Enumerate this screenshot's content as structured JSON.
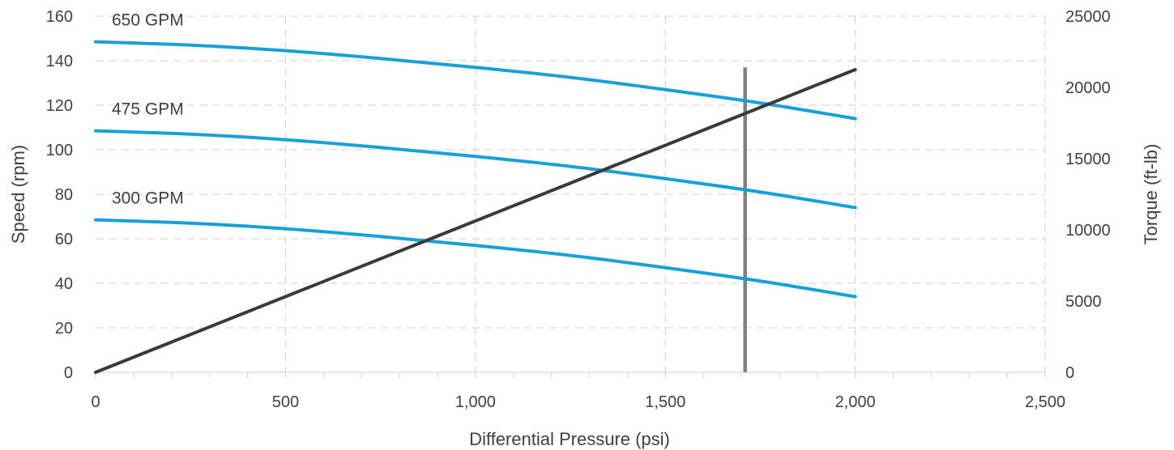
{
  "chart_data": {
    "type": "line",
    "title": "",
    "xlabel": "Differential Pressure (psi)",
    "ylabel": "Speed (rpm)",
    "y2label": "Torque (ft-lb)",
    "xlim": [
      0,
      2500
    ],
    "ylim": [
      0,
      160
    ],
    "y2lim": [
      0,
      25000
    ],
    "x_ticks": [
      0,
      500,
      1000,
      1500,
      2000,
      2500
    ],
    "x_tick_labels": [
      "0",
      "500",
      "1,000",
      "1,500",
      "2,000",
      "2,500"
    ],
    "y_ticks": [
      0,
      20,
      40,
      60,
      80,
      100,
      120,
      140,
      160
    ],
    "y_tick_labels": [
      "0",
      "20",
      "40",
      "60",
      "80",
      "100",
      "120",
      "140",
      "160"
    ],
    "y2_ticks": [
      0,
      5000,
      10000,
      15000,
      20000,
      25000
    ],
    "y2_tick_labels": [
      "0",
      "5000",
      "10000",
      "15000",
      "20000",
      "25000"
    ],
    "grid": true,
    "legend": "none",
    "series": [
      {
        "name": "650 GPM",
        "axis": "left",
        "color": "#1aa0d8",
        "x": [
          0,
          250,
          500,
          750,
          1000,
          1250,
          1500,
          1750,
          2000
        ],
        "y": [
          148.5,
          147,
          144.5,
          141,
          137,
          132.5,
          127,
          121,
          114
        ]
      },
      {
        "name": "475 GPM",
        "axis": "left",
        "color": "#1aa0d8",
        "x": [
          0,
          250,
          500,
          750,
          1000,
          1250,
          1500,
          1750,
          2000
        ],
        "y": [
          108.5,
          107,
          104.5,
          101,
          97,
          92.5,
          87,
          81,
          74
        ]
      },
      {
        "name": "300 GPM",
        "axis": "left",
        "color": "#1aa0d8",
        "x": [
          0,
          250,
          500,
          750,
          1000,
          1250,
          1500,
          1750,
          2000
        ],
        "y": [
          68.5,
          67,
          64.5,
          61,
          57,
          52.5,
          47,
          41,
          34
        ]
      },
      {
        "name": "Torque",
        "axis": "right",
        "color": "#3a3a3a",
        "x": [
          0,
          2000
        ],
        "y": [
          0,
          21250
        ]
      }
    ],
    "annotations": [
      {
        "type": "vline",
        "x": 1710,
        "y_top": 137,
        "color": "#808080"
      }
    ]
  }
}
